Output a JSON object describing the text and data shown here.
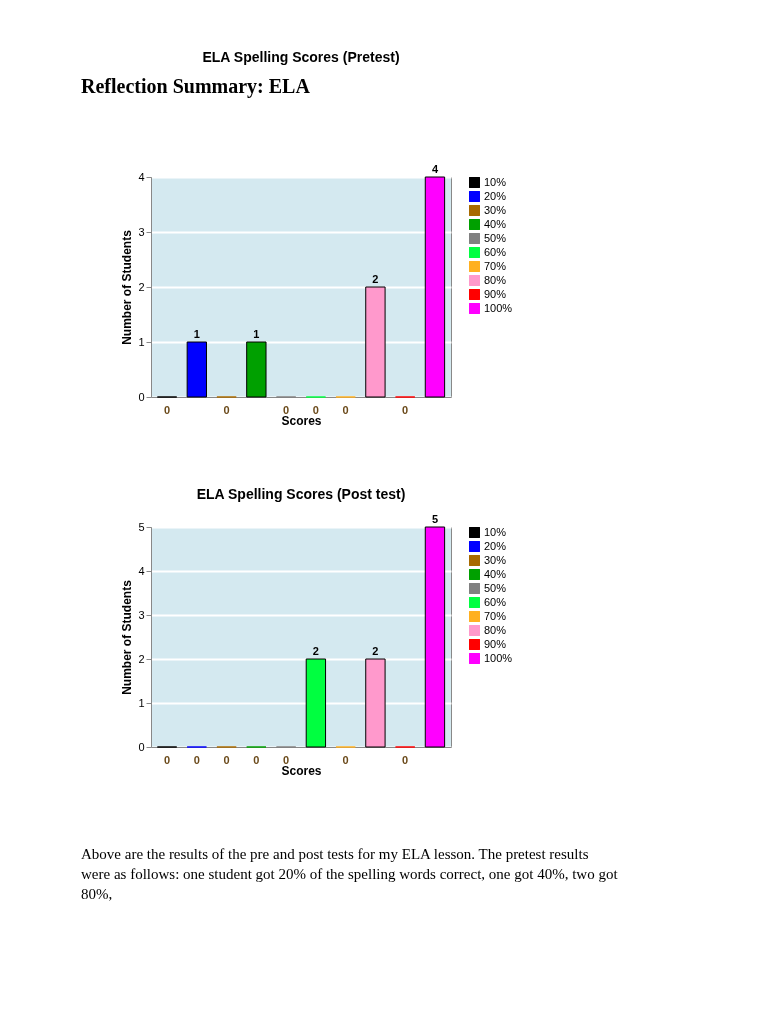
{
  "chart_data": [
    {
      "type": "bar",
      "title": "ELA Spelling Scores (Pretest)",
      "xlabel": "Scores",
      "ylabel": "Number of Students",
      "categories": [
        null
      ],
      "series": [
        {
          "name": "10%",
          "color": "#000000",
          "values": [
            0
          ]
        },
        {
          "name": "20%",
          "color": "#0000ff",
          "values": [
            1
          ]
        },
        {
          "name": "30%",
          "color": "#a86a00",
          "values": [
            0
          ]
        },
        {
          "name": "40%",
          "color": "#00a000",
          "values": [
            1
          ]
        },
        {
          "name": "50%",
          "color": "#808080",
          "values": [
            0
          ]
        },
        {
          "name": "60%",
          "color": "#00ff40",
          "values": [
            0
          ]
        },
        {
          "name": "70%",
          "color": "#ffb020",
          "values": [
            0
          ]
        },
        {
          "name": "80%",
          "color": "#ff99cc",
          "values": [
            2
          ]
        },
        {
          "name": "90%",
          "color": "#ff0000",
          "values": [
            0
          ]
        },
        {
          "name": "100%",
          "color": "#ff00ff",
          "values": [
            4
          ]
        }
      ],
      "ylim": [
        0,
        4
      ],
      "yticks": [
        0,
        1,
        2,
        3,
        4
      ],
      "grid": "y",
      "legend": "right",
      "tick_labels": "y",
      "data_labels": true,
      "annotations": [
        "Reflection Summary: ELA"
      ]
    },
    {
      "type": "bar",
      "title": "ELA Spelling Scores (Post test)",
      "xlabel": "Scores",
      "ylabel": "Number of Students",
      "categories": [
        null
      ],
      "series": [
        {
          "name": "10%",
          "color": "#000000",
          "values": [
            0
          ]
        },
        {
          "name": "20%",
          "color": "#0000ff",
          "values": [
            0
          ]
        },
        {
          "name": "30%",
          "color": "#a86a00",
          "values": [
            0
          ]
        },
        {
          "name": "40%",
          "color": "#00a000",
          "values": [
            0
          ]
        },
        {
          "name": "50%",
          "color": "#808080",
          "values": [
            0
          ]
        },
        {
          "name": "60%",
          "color": "#00ff40",
          "values": [
            2
          ]
        },
        {
          "name": "70%",
          "color": "#ffb020",
          "values": [
            0
          ]
        },
        {
          "name": "80%",
          "color": "#ff99cc",
          "values": [
            2
          ]
        },
        {
          "name": "90%",
          "color": "#ff0000",
          "values": [
            0
          ]
        },
        {
          "name": "100%",
          "color": "#ff00ff",
          "values": [
            5
          ]
        }
      ],
      "ylim": [
        0,
        5
      ],
      "yticks": [
        0,
        1,
        2,
        3,
        4,
        5
      ],
      "grid": "y",
      "legend": "right",
      "tick_labels": "y",
      "data_labels": true,
      "annotations": [
        "Above are the results of the pre and post tests for my ELA lesson. The pretest results were as follows: one student got  20% of the spelling words correct, one got 40%, two got 80%,"
      ]
    }
  ]
}
